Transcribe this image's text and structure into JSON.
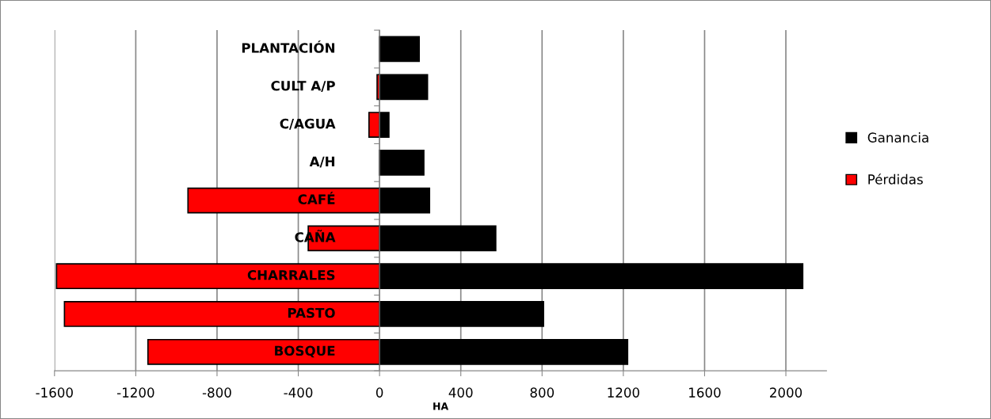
{
  "chart_data": {
    "type": "bar",
    "orientation": "horizontal",
    "xlabel": "HA",
    "categories": [
      "PLANTACIÓN",
      "CULT A/P",
      "C/AGUA",
      "A/H",
      "CAFÉ",
      "CAÑA",
      "CHARRALES",
      "PASTO",
      "BOSQUE"
    ],
    "series": [
      {
        "name": "Ganancia",
        "color": "#000000",
        "values": [
          195,
          236,
          46,
          218,
          246,
          572,
          2083,
          807,
          1221
        ]
      },
      {
        "name": "Pérdidas",
        "color": "#ff0000",
        "values": [
          null,
          -12,
          -52,
          null,
          -943,
          -351,
          -1590,
          -1551,
          -1140
        ]
      }
    ],
    "xlim": [
      -1600,
      2200
    ],
    "xticks": [
      -1600,
      -1200,
      -800,
      -400,
      0,
      400,
      800,
      1200,
      1600,
      2000
    ],
    "grid": "x",
    "legend": "right",
    "stacked": true
  }
}
